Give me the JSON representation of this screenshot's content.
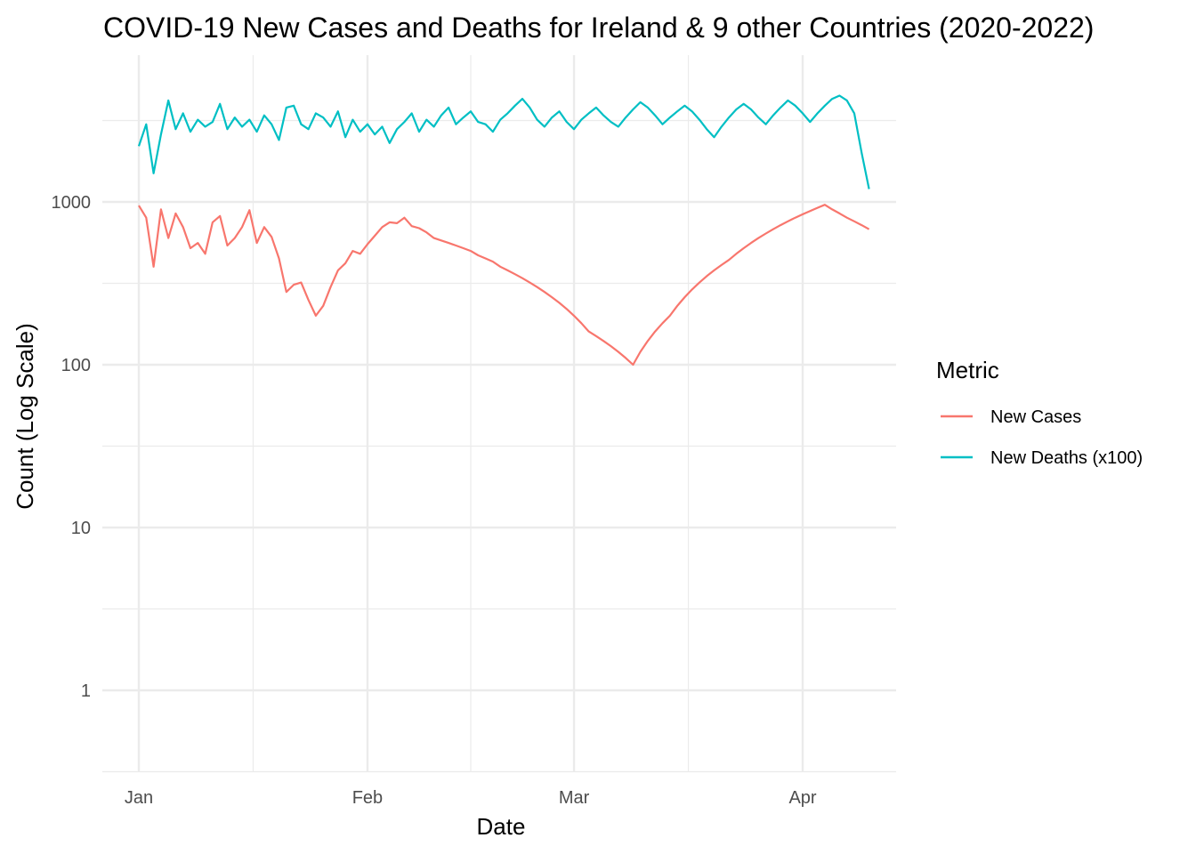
{
  "chart_data": {
    "type": "line",
    "title": "COVID-19 New Cases and Deaths for Ireland & 9 other Countries (2020-2022)",
    "xlabel": "Date",
    "ylabel": "Count (Log Scale)",
    "x_scale": "date",
    "y_scale": "log10",
    "xlim": [
      "2022-01-01",
      "2022-04-10"
    ],
    "ylim": [
      0.3,
      5000
    ],
    "x_ticks": [
      {
        "date": "2022-01-01",
        "label": "Jan"
      },
      {
        "date": "2022-02-01",
        "label": "Feb"
      },
      {
        "date": "2022-03-01",
        "label": "Mar"
      },
      {
        "date": "2022-04-01",
        "label": "Apr"
      }
    ],
    "y_ticks": [
      {
        "value": 1,
        "label": "1"
      },
      {
        "value": 10,
        "label": "10"
      },
      {
        "value": 100,
        "label": "100"
      },
      {
        "value": 1000,
        "label": "1000"
      }
    ],
    "grid": true,
    "legend": {
      "title": "Metric",
      "position": "right"
    },
    "series": [
      {
        "name": "New Cases",
        "color": "#F8766D",
        "x_start": "2022-01-01",
        "x_end": "2022-04-10",
        "values": [
          950,
          800,
          400,
          900,
          600,
          850,
          700,
          520,
          560,
          480,
          750,
          820,
          540,
          600,
          700,
          890,
          560,
          700,
          610,
          450,
          280,
          310,
          320,
          250,
          200,
          230,
          300,
          380,
          420,
          500,
          480,
          550,
          620,
          700,
          750,
          740,
          800,
          710,
          690,
          650,
          600,
          580,
          560,
          540,
          520,
          500,
          470,
          450,
          430,
          400,
          380,
          360,
          340,
          320,
          300,
          280,
          260,
          240,
          220,
          200,
          180,
          160,
          150,
          140,
          130,
          120,
          110,
          100,
          120,
          140,
          160,
          180,
          200,
          230,
          260,
          290,
          320,
          350,
          380,
          410,
          440,
          480,
          520,
          560,
          600,
          640,
          680,
          720,
          760,
          800,
          840,
          880,
          920,
          960,
          900,
          850,
          800,
          760,
          720,
          680
        ]
      },
      {
        "name": "New Deaths (x100)",
        "color": "#00BFC4",
        "x_start": "2022-01-01",
        "x_end": "2022-04-10",
        "values": [
          2200,
          3000,
          1500,
          2600,
          4200,
          2800,
          3500,
          2700,
          3200,
          2900,
          3100,
          4000,
          2800,
          3300,
          2900,
          3200,
          2700,
          3400,
          3000,
          2400,
          3800,
          3900,
          3000,
          2800,
          3500,
          3300,
          2900,
          3600,
          2500,
          3200,
          2700,
          3000,
          2600,
          2900,
          2300,
          2800,
          3100,
          3500,
          2700,
          3200,
          2900,
          3400,
          3800,
          3000,
          3300,
          3600,
          3100,
          3000,
          2700,
          3200,
          3500,
          3900,
          4300,
          3800,
          3200,
          2900,
          3300,
          3600,
          3100,
          2800,
          3200,
          3500,
          3800,
          3400,
          3100,
          2900,
          3300,
          3700,
          4100,
          3800,
          3400,
          3000,
          3300,
          3600,
          3900,
          3600,
          3200,
          2800,
          2500,
          2900,
          3300,
          3700,
          4000,
          3700,
          3300,
          3000,
          3400,
          3800,
          4200,
          3900,
          3500,
          3100,
          3500,
          3900,
          4300,
          4500,
          4200,
          3500,
          2000,
          1200
        ]
      }
    ]
  }
}
